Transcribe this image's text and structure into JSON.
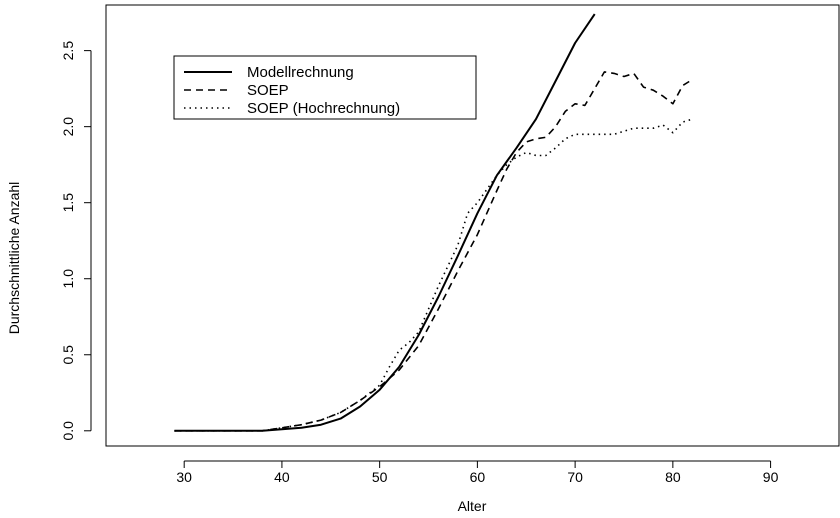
{
  "chart_data": {
    "type": "line",
    "title": "",
    "xlabel": "Alter",
    "ylabel": "Durchschnittliche Anzahl",
    "xlim": [
      22,
      97
    ],
    "ylim": [
      -0.1,
      2.8
    ],
    "x_ticks": [
      30,
      40,
      50,
      60,
      70,
      80,
      90
    ],
    "y_ticks": [
      0.0,
      0.5,
      1.0,
      1.5,
      2.0,
      2.5
    ],
    "y_tick_labels": [
      "0.0",
      "0.5",
      "1.0",
      "1.5",
      "2.0",
      "2.5"
    ],
    "grid": false,
    "legend_position": "top-left",
    "series": [
      {
        "name": "Modellrechnung",
        "style": "solid",
        "color": "#000000",
        "x": [
          29,
          35,
          38,
          40,
          42,
          44,
          46,
          48,
          50,
          52,
          54,
          56,
          58,
          60,
          62,
          64,
          66,
          68,
          70,
          72
        ],
        "y": [
          0.0,
          0.0,
          0.0,
          0.01,
          0.02,
          0.04,
          0.08,
          0.16,
          0.27,
          0.42,
          0.63,
          0.88,
          1.15,
          1.43,
          1.68,
          1.86,
          2.05,
          2.3,
          2.55,
          2.74
        ]
      },
      {
        "name": "SOEP",
        "style": "dashed",
        "color": "#000000",
        "x": [
          29,
          35,
          38,
          40,
          42,
          44,
          46,
          48,
          50,
          52,
          54,
          56,
          58,
          60,
          62,
          63,
          64,
          65,
          66,
          67,
          68,
          69,
          70,
          71,
          72,
          73,
          74,
          75,
          76,
          77,
          78,
          79,
          80,
          81,
          82
        ],
        "y": [
          0.0,
          0.0,
          0.0,
          0.02,
          0.04,
          0.07,
          0.12,
          0.2,
          0.29,
          0.4,
          0.56,
          0.8,
          1.05,
          1.29,
          1.58,
          1.72,
          1.83,
          1.9,
          1.92,
          1.93,
          2.0,
          2.1,
          2.15,
          2.14,
          2.25,
          2.36,
          2.35,
          2.33,
          2.35,
          2.26,
          2.24,
          2.2,
          2.15,
          2.27,
          2.31
        ]
      },
      {
        "name": "SOEP (Hochrechnung)",
        "style": "dotted",
        "color": "#000000",
        "x": [
          29,
          35,
          38,
          40,
          42,
          44,
          46,
          48,
          50,
          51,
          52,
          53,
          54,
          56,
          58,
          59,
          60,
          62,
          63,
          64,
          65,
          66,
          67,
          68,
          69,
          70,
          72,
          74,
          75,
          76,
          78,
          79,
          80,
          81,
          82
        ],
        "y": [
          0.0,
          0.0,
          0.0,
          0.02,
          0.04,
          0.07,
          0.12,
          0.2,
          0.3,
          0.42,
          0.53,
          0.58,
          0.65,
          0.95,
          1.22,
          1.43,
          1.5,
          1.68,
          1.75,
          1.8,
          1.83,
          1.81,
          1.81,
          1.86,
          1.92,
          1.95,
          1.95,
          1.95,
          1.97,
          1.99,
          1.99,
          2.01,
          1.96,
          2.03,
          2.05
        ]
      }
    ]
  }
}
